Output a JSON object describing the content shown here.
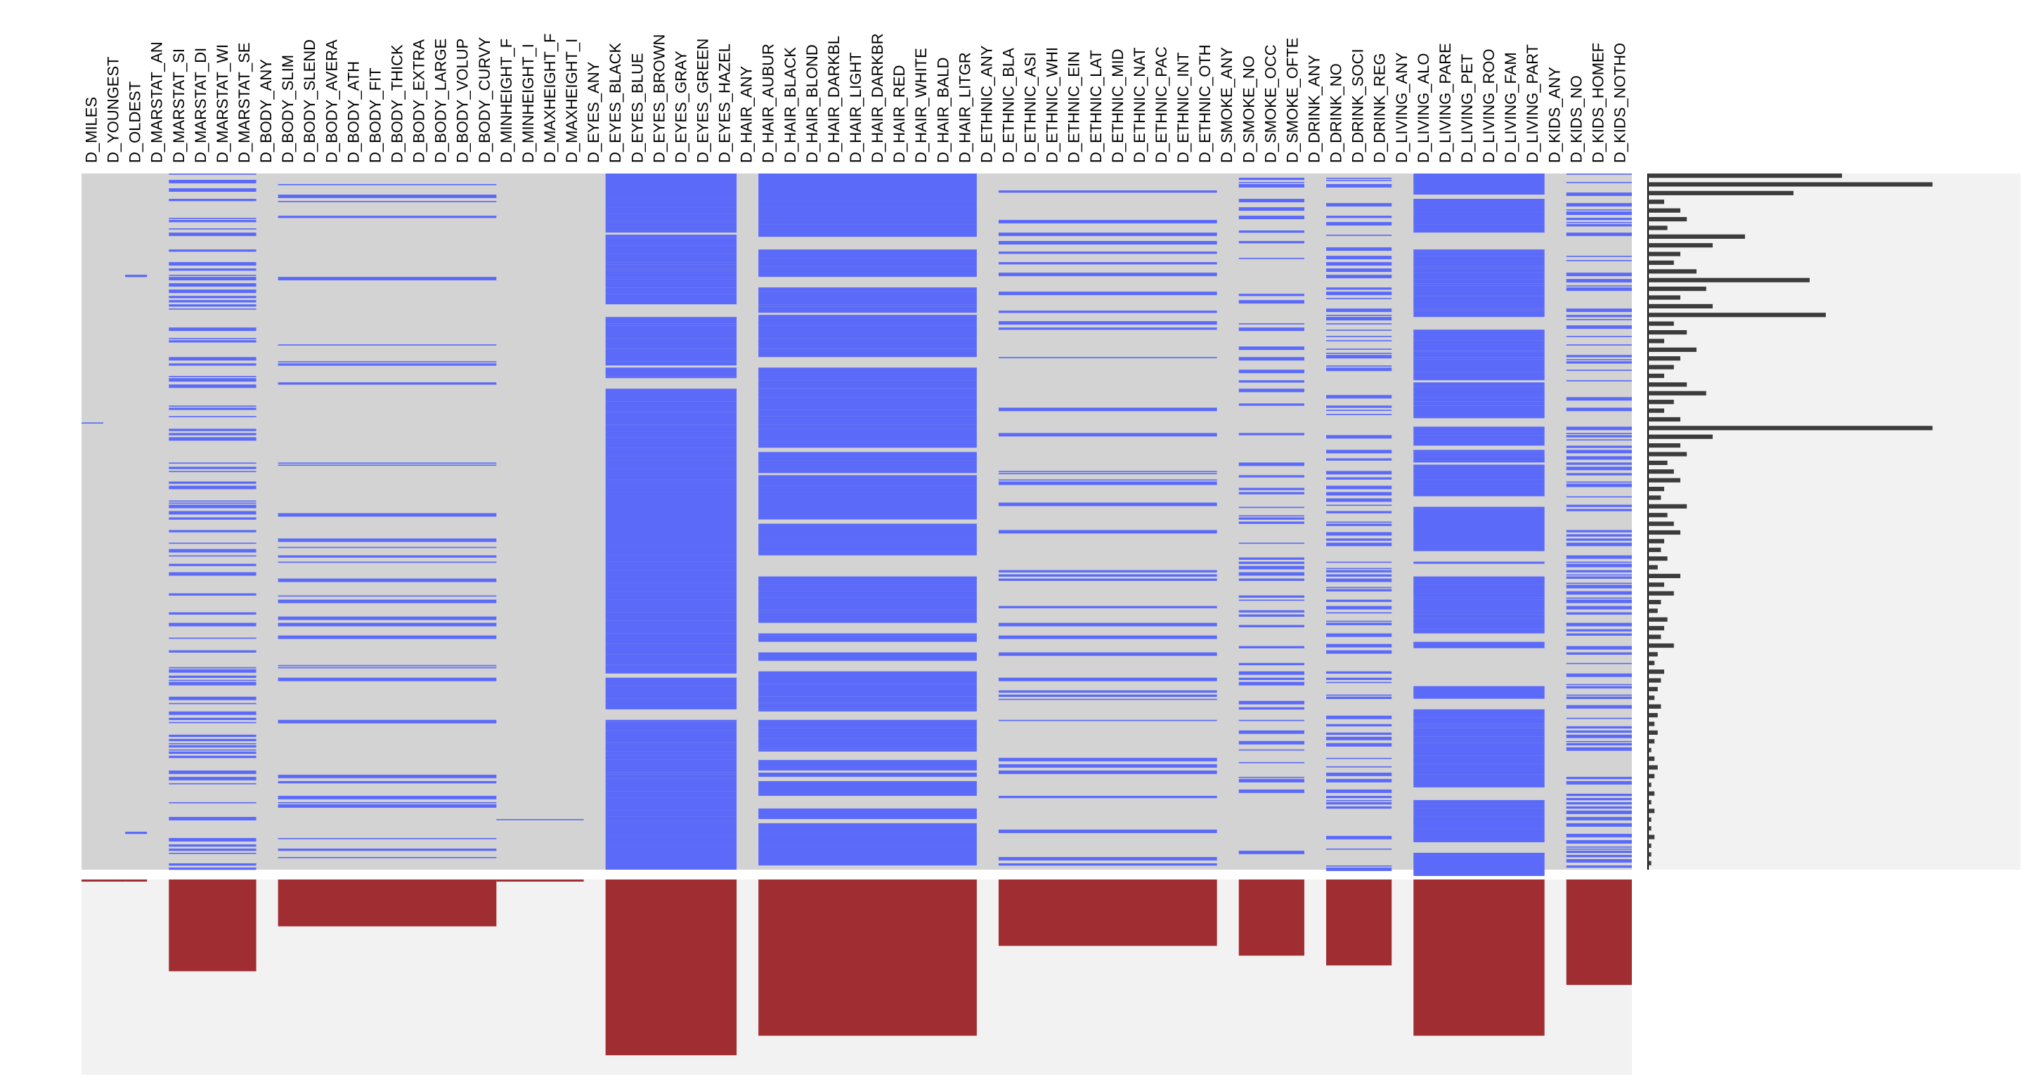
{
  "chart_data": [
    {
      "type": "heatmap",
      "name": "missingness matrix",
      "columns": [
        "D_MILES",
        "D_YOUNGEST",
        "D_OLDEST",
        "D_MARSTAT_AN",
        "D_MARSTAT_SI",
        "D_MARSTAT_DI",
        "D_MARSTAT_WI",
        "D_MARSTAT_SE",
        "D_BODY_ANY",
        "D_BODY_SLIM",
        "D_BODY_SLEND",
        "D_BODY_AVERA",
        "D_BODY_ATH",
        "D_BODY_FIT",
        "D_BODY_THICK",
        "D_BODY_EXTRA",
        "D_BODY_LARGE",
        "D_BODY_VOLUP",
        "D_BODY_CURVY",
        "D_MINHEIGHT_F",
        "D_MINHEIGHT_I",
        "D_MAXHEIGHT_F",
        "D_MAXHEIGHT_I",
        "D_EYES_ANY",
        "D_EYES_BLACK",
        "D_EYES_BLUE",
        "D_EYES_BROWN",
        "D_EYES_GRAY",
        "D_EYES_GREEN",
        "D_EYES_HAZEL",
        "D_HAIR_ANY",
        "D_HAIR_AUBUR",
        "D_HAIR_BLACK",
        "D_HAIR_BLOND",
        "D_HAIR_DARKBL",
        "D_HAIR_LIGHT",
        "D_HAIR_DARKBR",
        "D_HAIR_RED",
        "D_HAIR_WHITE",
        "D_HAIR_BALD",
        "D_HAIR_LITGR",
        "D_ETHNIC_ANY",
        "D_ETHNIC_BLA",
        "D_ETHNIC_ASI",
        "D_ETHNIC_WHI",
        "D_ETHNIC_EIN",
        "D_ETHNIC_LAT",
        "D_ETHNIC_MID",
        "D_ETHNIC_NAT",
        "D_ETHNIC_PAC",
        "D_ETHNIC_INT",
        "D_ETHNIC_OTH",
        "D_SMOKE_ANY",
        "D_SMOKE_NO",
        "D_SMOKE_OCC",
        "D_SMOKE_OFTE",
        "D_DRINK_ANY",
        "D_DRINK_NO",
        "D_DRINK_SOCI",
        "D_DRINK_REG",
        "D_LIVING_ANY",
        "D_LIVING_ALO",
        "D_LIVING_PARE",
        "D_LIVING_PET",
        "D_LIVING_ROO",
        "D_LIVING_FAM",
        "D_LIVING_PART",
        "D_KIDS_ANY",
        "D_KIDS_NO",
        "D_KIDS_HOMEF",
        "D_KIDS_NOTHO"
      ],
      "groups": [
        {
          "columns": [
            "D_MILES"
          ],
          "missing_fraction": 0.01
        },
        {
          "columns": [
            "D_YOUNGEST"
          ],
          "missing_fraction": 0.004
        },
        {
          "columns": [
            "D_OLDEST"
          ],
          "missing_fraction": 0.01
        },
        {
          "columns": [
            "D_MARSTAT_AN"
          ],
          "missing_fraction": 0.0
        },
        {
          "columns": [
            "D_MARSTAT_SI",
            "D_MARSTAT_DI",
            "D_MARSTAT_WI",
            "D_MARSTAT_SE"
          ],
          "missing_fraction": 0.47
        },
        {
          "columns": [
            "D_BODY_ANY"
          ],
          "missing_fraction": 0.0
        },
        {
          "columns": [
            "D_BODY_SLIM",
            "D_BODY_SLEND",
            "D_BODY_AVERA",
            "D_BODY_ATH",
            "D_BODY_FIT",
            "D_BODY_THICK",
            "D_BODY_EXTRA",
            "D_BODY_LARGE",
            "D_BODY_VOLUP",
            "D_BODY_CURVY"
          ],
          "missing_fraction": 0.24
        },
        {
          "columns": [
            "D_MINHEIGHT_F",
            "D_MINHEIGHT_I",
            "D_MAXHEIGHT_F",
            "D_MAXHEIGHT_I"
          ],
          "missing_fraction": 0.004
        },
        {
          "columns": [
            "D_EYES_ANY"
          ],
          "missing_fraction": 0.0
        },
        {
          "columns": [
            "D_EYES_BLACK",
            "D_EYES_BLUE",
            "D_EYES_BROWN",
            "D_EYES_GRAY",
            "D_EYES_GREEN",
            "D_EYES_HAZEL"
          ],
          "missing_fraction": 0.9
        },
        {
          "columns": [
            "D_HAIR_ANY"
          ],
          "missing_fraction": 0.0
        },
        {
          "columns": [
            "D_HAIR_AUBUR",
            "D_HAIR_BLACK",
            "D_HAIR_BLOND",
            "D_HAIR_DARKBL",
            "D_HAIR_LIGHT",
            "D_HAIR_DARKBR",
            "D_HAIR_RED",
            "D_HAIR_WHITE",
            "D_HAIR_BALD",
            "D_HAIR_LITGR"
          ],
          "missing_fraction": 0.8
        },
        {
          "columns": [
            "D_ETHNIC_ANY"
          ],
          "missing_fraction": 0.0
        },
        {
          "columns": [
            "D_ETHNIC_BLA",
            "D_ETHNIC_ASI",
            "D_ETHNIC_WHI",
            "D_ETHNIC_EIN",
            "D_ETHNIC_LAT",
            "D_ETHNIC_MID",
            "D_ETHNIC_NAT",
            "D_ETHNIC_PAC",
            "D_ETHNIC_INT",
            "D_ETHNIC_OTH"
          ],
          "missing_fraction": 0.34
        },
        {
          "columns": [
            "D_SMOKE_ANY"
          ],
          "missing_fraction": 0.0
        },
        {
          "columns": [
            "D_SMOKE_NO",
            "D_SMOKE_OCC",
            "D_SMOKE_OFTE"
          ],
          "missing_fraction": 0.39
        },
        {
          "columns": [
            "D_DRINK_ANY"
          ],
          "missing_fraction": 0.0
        },
        {
          "columns": [
            "D_DRINK_NO",
            "D_DRINK_SOCI",
            "D_DRINK_REG"
          ],
          "missing_fraction": 0.44
        },
        {
          "columns": [
            "D_LIVING_ANY"
          ],
          "missing_fraction": 0.0
        },
        {
          "columns": [
            "D_LIVING_ALO",
            "D_LIVING_PARE",
            "D_LIVING_PET",
            "D_LIVING_ROO",
            "D_LIVING_FAM",
            "D_LIVING_PART"
          ],
          "missing_fraction": 0.8
        },
        {
          "columns": [
            "D_KIDS_ANY"
          ],
          "missing_fraction": 0.0
        },
        {
          "columns": [
            "D_KIDS_NO",
            "D_KIDS_HOMEF",
            "D_KIDS_NOTHO"
          ],
          "missing_fraction": 0.54
        }
      ],
      "colors": {
        "present": "#d3d3d3",
        "missing": "#5b6af9",
        "bar": "#a02d32",
        "row_bar": "#3c3c3c",
        "panel_bg": "#f2f2f2"
      }
    },
    {
      "type": "bar",
      "name": "row missing counts (right margin)",
      "orientation": "horizontal",
      "values": [
        0.6,
        0.88,
        0.45,
        0.05,
        0.1,
        0.12,
        0.06,
        0.3,
        0.2,
        0.1,
        0.08,
        0.15,
        0.5,
        0.18,
        0.1,
        0.2,
        0.55,
        0.08,
        0.12,
        0.05,
        0.15,
        0.1,
        0.08,
        0.05,
        0.12,
        0.18,
        0.08,
        0.05,
        0.1,
        0.88,
        0.2,
        0.1,
        0.12,
        0.06,
        0.08,
        0.1,
        0.05,
        0.04,
        0.12,
        0.06,
        0.08,
        0.1,
        0.05,
        0.04,
        0.06,
        0.03,
        0.1,
        0.05,
        0.08,
        0.04,
        0.03,
        0.06,
        0.05,
        0.04,
        0.08,
        0.03,
        0.02,
        0.05,
        0.04,
        0.03,
        0.02,
        0.04,
        0.03,
        0.02,
        0.03,
        0.02,
        0.01,
        0.02,
        0.03,
        0.02,
        0.01,
        0.02,
        0.01,
        0.02,
        0.01,
        0.01,
        0.02,
        0.01,
        0.01,
        0.01
      ]
    }
  ]
}
